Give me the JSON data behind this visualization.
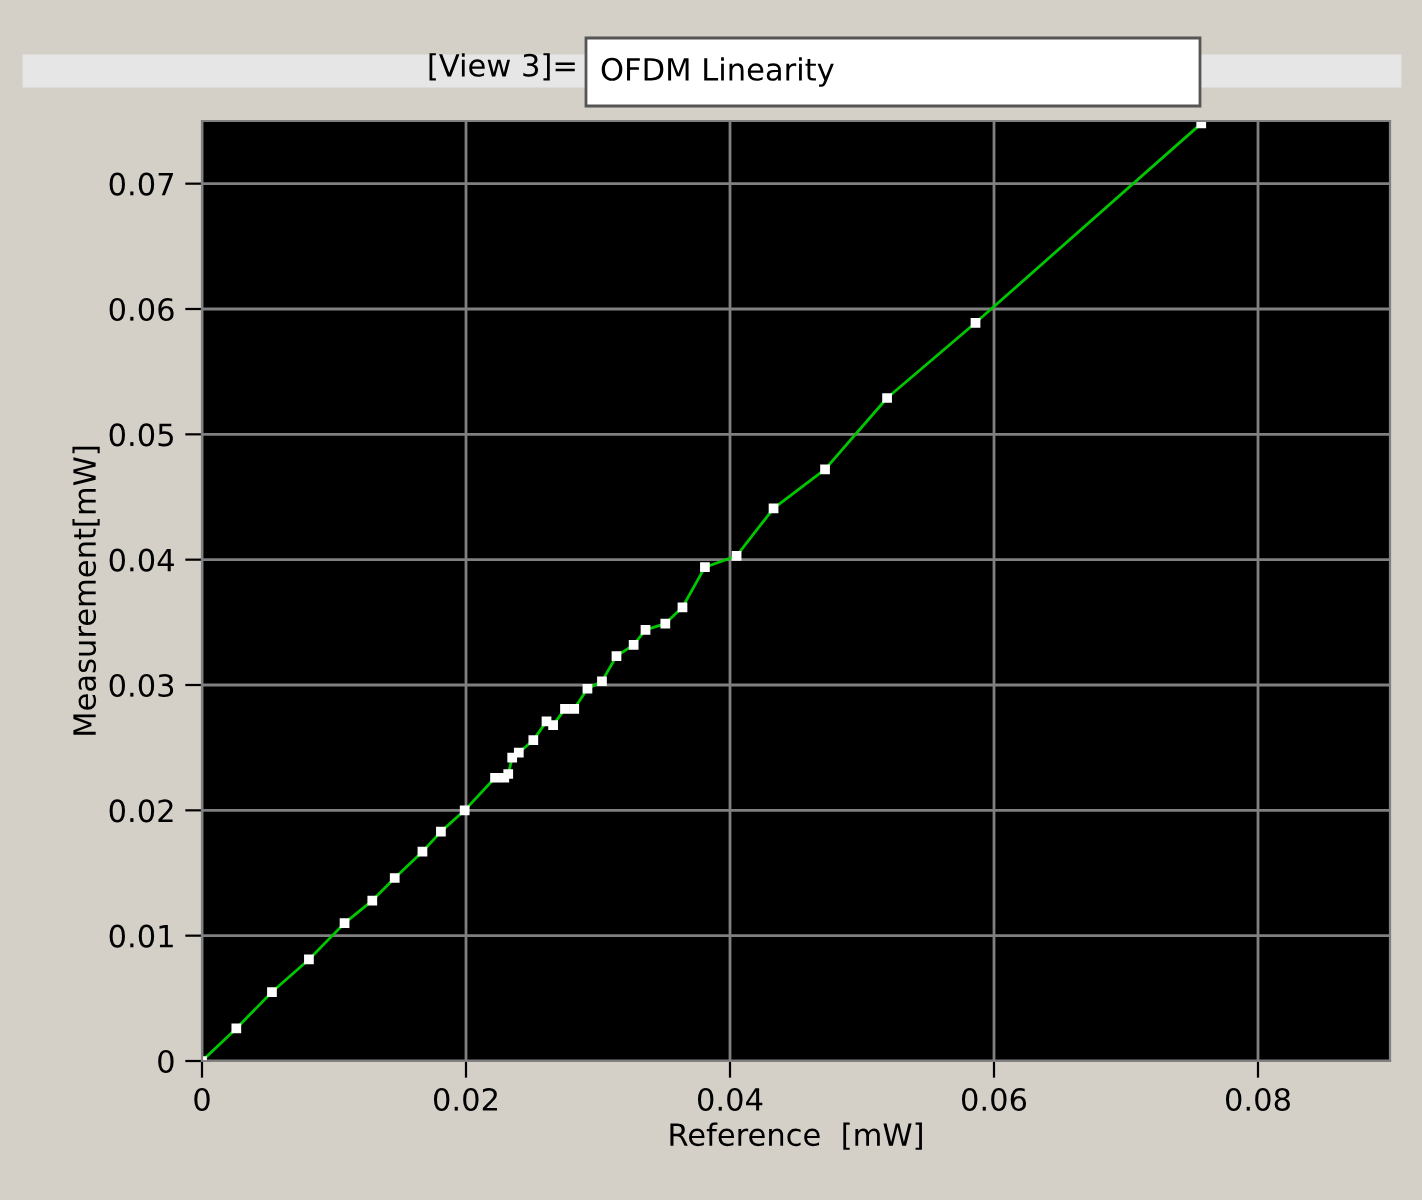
{
  "chart_data": {
    "type": "line",
    "title": "OFDM Linearity",
    "annotations": [
      "[View 3]="
    ],
    "xlabel": "Reference  [mW]",
    "ylabel": "Measurement[mW]",
    "xlim": [
      0,
      0.09
    ],
    "ylim": [
      0,
      0.075
    ],
    "xticks": [
      0,
      0.02,
      0.04,
      0.06,
      0.08
    ],
    "yticks": [
      0,
      0.01,
      0.02,
      0.03,
      0.04,
      0.05,
      0.06,
      0.07
    ],
    "grid": true,
    "marker": "square",
    "legend": false,
    "series": [
      {
        "color": "#00c800",
        "x": [
          0,
          0.0026,
          0.0053,
          0.0081,
          0.0108,
          0.0129,
          0.0146,
          0.0167,
          0.0181,
          0.0199,
          0.0222,
          0.0229,
          0.0232,
          0.0235,
          0.024,
          0.0251,
          0.0261,
          0.0266,
          0.0275,
          0.0282,
          0.0292,
          0.0303,
          0.0314,
          0.0327,
          0.0336,
          0.0351,
          0.0364,
          0.0381,
          0.0405,
          0.0433,
          0.0472,
          0.0519,
          0.0586,
          0.0757
        ],
        "values": [
          0,
          0.0026,
          0.0055,
          0.0081,
          0.011,
          0.0128,
          0.0146,
          0.0167,
          0.0183,
          0.02,
          0.0226,
          0.0226,
          0.0229,
          0.0242,
          0.0246,
          0.0256,
          0.0271,
          0.0268,
          0.0281,
          0.0281,
          0.0297,
          0.0303,
          0.0323,
          0.0332,
          0.0344,
          0.0349,
          0.0362,
          0.0394,
          0.0403,
          0.0441,
          0.0472,
          0.0529,
          0.0589,
          0.0748
        ]
      }
    ]
  }
}
